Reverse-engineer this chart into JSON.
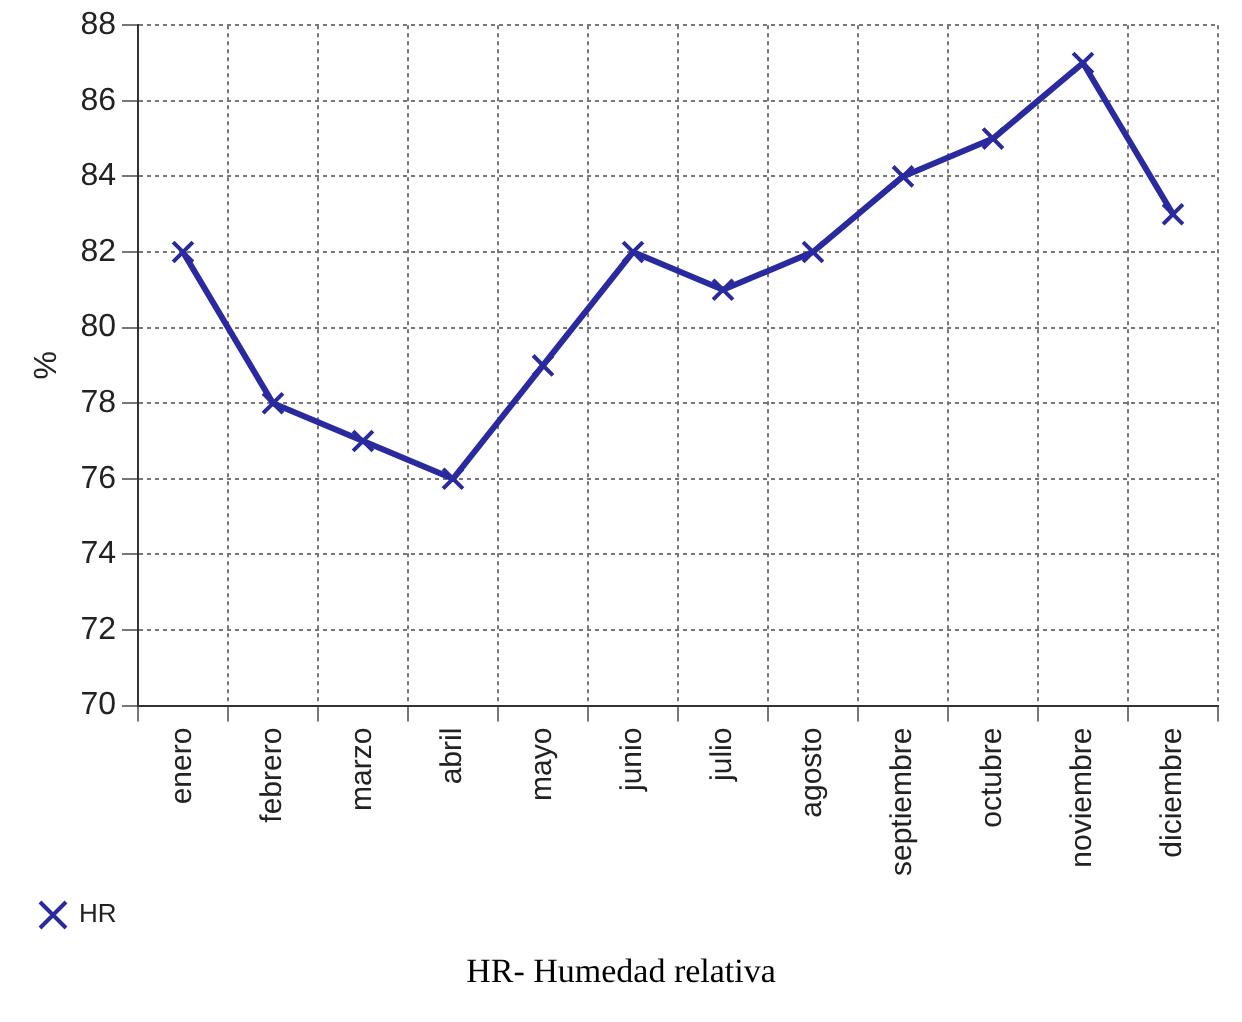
{
  "chart_data": {
    "type": "line",
    "ylabel": "%",
    "categories": [
      "enero",
      "febrero",
      "marzo",
      "abril",
      "mayo",
      "junio",
      "julio",
      "agosto",
      "septiembre",
      "octubre",
      "noviembre",
      "diciembre"
    ],
    "series": [
      {
        "name": "HR",
        "color": "#2a2aa0",
        "values": [
          82,
          78,
          77,
          76,
          79,
          82,
          81,
          82,
          84,
          85,
          87,
          83
        ]
      }
    ],
    "ylim": [
      70,
      88
    ],
    "yticks": [
      70,
      72,
      74,
      76,
      78,
      80,
      82,
      84,
      86,
      88
    ],
    "grid": true,
    "legend": "bottom left",
    "marker": "cross",
    "line_style": "solid",
    "annotations": [
      "HR- Humedad relativa"
    ]
  }
}
